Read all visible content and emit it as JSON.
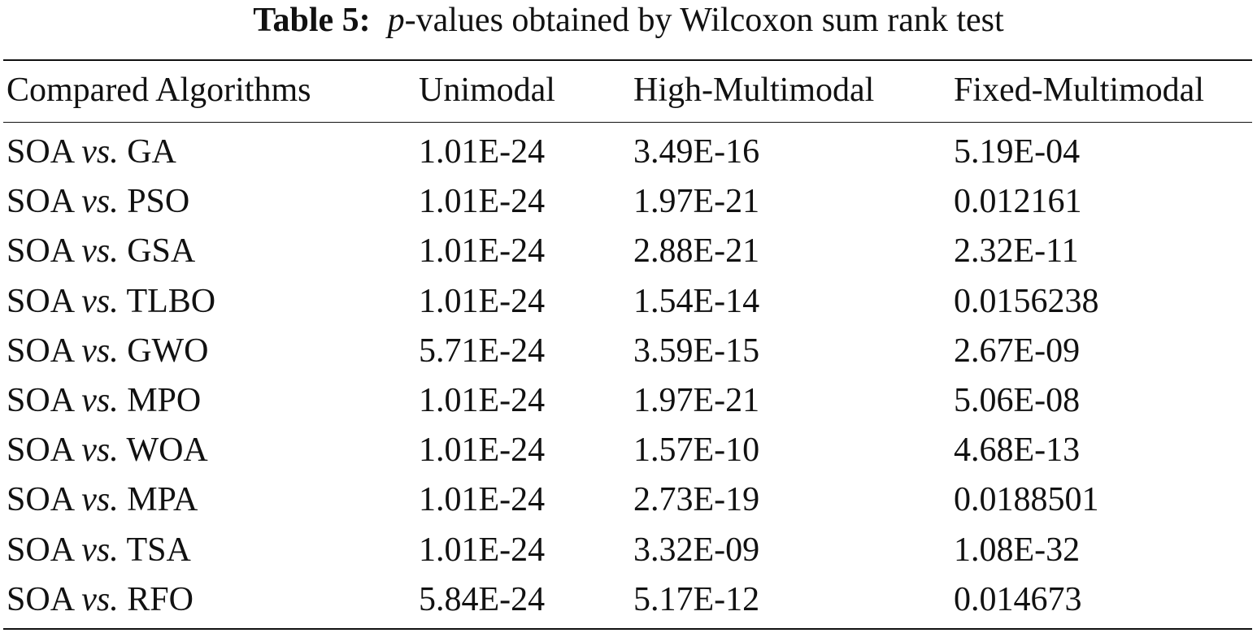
{
  "caption": {
    "label": "Table 5:",
    "p_symbol": "p",
    "text": "-values obtained by Wilcoxon sum rank test"
  },
  "table": {
    "headers": [
      "Compared Algorithms",
      "Unimodal",
      "High-Multimodal",
      "Fixed-Multimodal"
    ],
    "vs_word": "vs.",
    "rows": [
      {
        "a": "SOA",
        "b": "GA",
        "unimodal": "1.01E-24",
        "high_multimodal": "3.49E-16",
        "fixed_multimodal": "5.19E-04"
      },
      {
        "a": "SOA",
        "b": "PSO",
        "unimodal": "1.01E-24",
        "high_multimodal": "1.97E-21",
        "fixed_multimodal": "0.012161"
      },
      {
        "a": "SOA",
        "b": "GSA",
        "unimodal": "1.01E-24",
        "high_multimodal": "2.88E-21",
        "fixed_multimodal": "2.32E-11"
      },
      {
        "a": "SOA",
        "b": "TLBO",
        "unimodal": "1.01E-24",
        "high_multimodal": "1.54E-14",
        "fixed_multimodal": "0.0156238"
      },
      {
        "a": "SOA",
        "b": "GWO",
        "unimodal": "5.71E-24",
        "high_multimodal": "3.59E-15",
        "fixed_multimodal": "2.67E-09"
      },
      {
        "a": "SOA",
        "b": "MPO",
        "unimodal": "1.01E-24",
        "high_multimodal": "1.97E-21",
        "fixed_multimodal": "5.06E-08"
      },
      {
        "a": "SOA",
        "b": "WOA",
        "unimodal": "1.01E-24",
        "high_multimodal": "1.57E-10",
        "fixed_multimodal": "4.68E-13"
      },
      {
        "a": "SOA",
        "b": "MPA",
        "unimodal": "1.01E-24",
        "high_multimodal": "2.73E-19",
        "fixed_multimodal": "0.0188501"
      },
      {
        "a": "SOA",
        "b": "TSA",
        "unimodal": "1.01E-24",
        "high_multimodal": "3.32E-09",
        "fixed_multimodal": "1.08E-32"
      },
      {
        "a": "SOA",
        "b": "RFO",
        "unimodal": "5.84E-24",
        "high_multimodal": "5.17E-12",
        "fixed_multimodal": "0.014673"
      }
    ]
  }
}
